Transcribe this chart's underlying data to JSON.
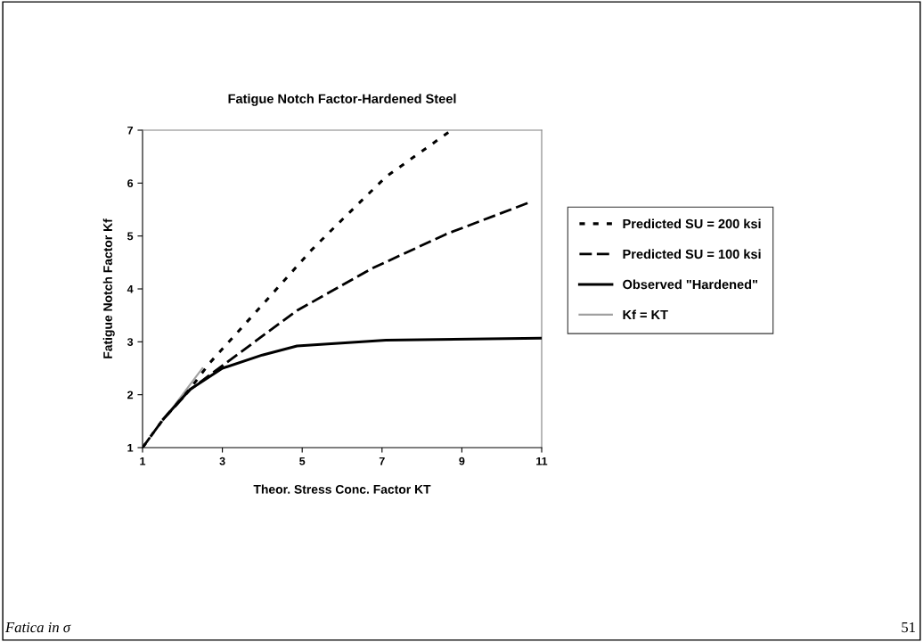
{
  "chart_data": {
    "type": "line",
    "title": "Fatigue Notch Factor-Hardened Steel",
    "xlabel": "Theor. Stress Conc. Factor KT",
    "ylabel": "Fatigue Notch Factor Kf",
    "xlim": [
      1,
      11
    ],
    "xticks": [
      1,
      3,
      5,
      7,
      9,
      11
    ],
    "ylim": [
      1,
      7
    ],
    "yticks": [
      1,
      2,
      3,
      4,
      5,
      6,
      7
    ],
    "grid": false,
    "legend": "right",
    "marker": "none",
    "series": [
      {
        "name": "Predicted SU = 200 ksi",
        "color": "#000000",
        "line_style": "dotted",
        "x": [
          1,
          1.5,
          2.2,
          2.67,
          3.98,
          5.24,
          5.84,
          7.1,
          8.74
        ],
        "values": [
          1,
          1.52,
          2.12,
          2.59,
          3.68,
          4.74,
          5.19,
          6.12,
          7.0
        ]
      },
      {
        "name": "Predicted SU = 100 ksi",
        "color": "#000000",
        "line_style": "dashed",
        "x": [
          1,
          1.5,
          2.2,
          3.0,
          4.87,
          6.73,
          8.59,
          10.71
        ],
        "values": [
          1,
          1.52,
          2.1,
          2.55,
          3.59,
          4.38,
          5.03,
          5.64
        ]
      },
      {
        "name": "Observed \"Hardened\"",
        "color": "#000000",
        "line_style": "solid",
        "x": [
          1.52,
          2.19,
          3.0,
          4.0,
          4.87,
          7.1,
          10.97
        ],
        "values": [
          1.54,
          2.1,
          2.5,
          2.75,
          2.92,
          3.03,
          3.07
        ]
      },
      {
        "name": "Kf = KT",
        "color": "#a0a0a0",
        "line_style": "solid",
        "x": [
          1,
          2.5
        ],
        "values": [
          1,
          2.5
        ]
      }
    ],
    "annotations": [
      "Fatica in σ",
      "51"
    ]
  }
}
